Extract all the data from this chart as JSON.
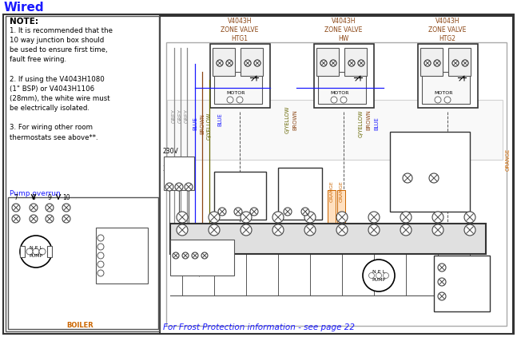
{
  "title": "Wired",
  "title_color": "#1a1aff",
  "bg_color": "#ffffff",
  "note_lines": [
    "NOTE:",
    "1. It is recommended that the",
    "10 way junction box should",
    "be used to ensure first time,",
    "fault free wiring.",
    " ",
    "2. If using the V4043H1080",
    "(1\" BSP) or V4043H1106",
    "(28mm), the white wire must",
    "be electrically isolated.",
    " ",
    "3. For wiring other room",
    "thermostats see above**."
  ],
  "pump_overrun_label": "Pump overrun",
  "zone_valve_labels": [
    "V4043H\nZONE VALVE\nHTG1",
    "V4043H\nZONE VALVE\nHW",
    "V4043H\nZONE VALVE\nHTG2"
  ],
  "zone_valve_color": "#8B4513",
  "zv_label_color": "#1a1aff",
  "footer_text": "For Frost Protection information - see page 22",
  "footer_color": "#1a1aff",
  "grey": "#888888",
  "blue": "#1a1aff",
  "brown": "#8B4513",
  "gyellow": "#666600",
  "orange": "#cc6600",
  "black": "#111111",
  "cm900_color": "#1a1aff",
  "boiler_color": "#cc6600"
}
